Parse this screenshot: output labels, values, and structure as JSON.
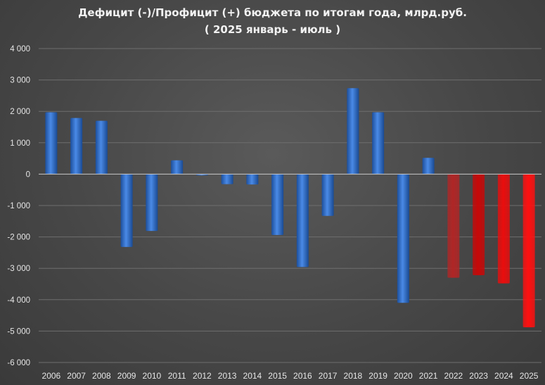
{
  "chart_data": {
    "type": "bar",
    "title": "Дефицит (-)/Профицит (+) бюджета по итогам года, млрд.руб.",
    "subtitle": "( 2025 январь - июль )",
    "xlabel": "",
    "ylabel": "",
    "ylim": [
      -6000,
      4000
    ],
    "yticks": [
      4000,
      3000,
      2000,
      1000,
      0,
      -1000,
      -2000,
      -3000,
      -4000,
      -5000,
      -6000
    ],
    "ytick_labels": [
      "4 000",
      "3 000",
      "2 000",
      "1 000",
      "0",
      "-1 000",
      "-2 000",
      "-3 000",
      "-4 000",
      "-5 000",
      "-6 000"
    ],
    "grid": true,
    "categories": [
      "2006",
      "2007",
      "2008",
      "2009",
      "2010",
      "2011",
      "2012",
      "2013",
      "2014",
      "2015",
      "2016",
      "2017",
      "2018",
      "2019",
      "2020",
      "2021",
      "2022",
      "2023",
      "2024",
      "2025"
    ],
    "values": [
      1970,
      1790,
      1700,
      -2320,
      -1810,
      440,
      -40,
      -320,
      -330,
      -1940,
      -2960,
      -1330,
      2740,
      1970,
      -4100,
      520,
      -3300,
      -3220,
      -3480,
      -4880
    ],
    "colors": [
      "#2e6bc6",
      "#2e6bc6",
      "#2e6bc6",
      "#2e6bc6",
      "#2e6bc6",
      "#2e6bc6",
      "#2e6bc6",
      "#2e6bc6",
      "#2e6bc6",
      "#2e6bc6",
      "#2e6bc6",
      "#2e6bc6",
      "#2e6bc6",
      "#2e6bc6",
      "#2e6bc6",
      "#2e6bc6",
      "#b02626",
      "#c80808",
      "#ea0d0d",
      "#ff1010"
    ]
  }
}
